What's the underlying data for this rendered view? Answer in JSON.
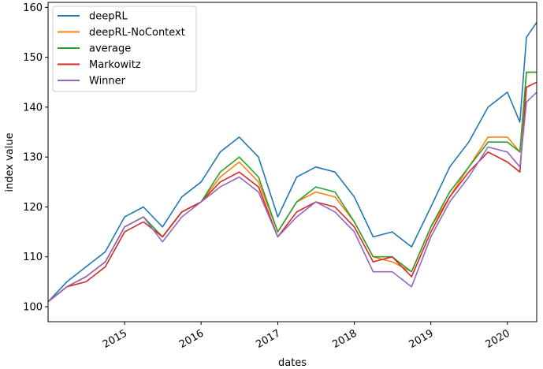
{
  "chart_data": {
    "type": "line",
    "xlabel": "dates",
    "ylabel": "index value",
    "xlim": [
      "2014-01-01",
      "2020-05-20"
    ],
    "ylim": [
      97,
      161
    ],
    "yticks": [
      100,
      110,
      120,
      130,
      140,
      150,
      160
    ],
    "xticks": [
      {
        "date": "2015-01-01",
        "label": "2015"
      },
      {
        "date": "2016-01-01",
        "label": "2016"
      },
      {
        "date": "2017-01-01",
        "label": "2017"
      },
      {
        "date": "2018-01-01",
        "label": "2018"
      },
      {
        "date": "2019-01-01",
        "label": "2019"
      },
      {
        "date": "2020-01-01",
        "label": "2020"
      }
    ],
    "grid": false,
    "legend_position": "top-left",
    "x": [
      "2014-01-01",
      "2014-04-01",
      "2014-07-01",
      "2014-10-01",
      "2015-01-01",
      "2015-04-01",
      "2015-07-01",
      "2015-10-01",
      "2016-01-01",
      "2016-04-01",
      "2016-07-01",
      "2016-10-01",
      "2017-01-01",
      "2017-04-01",
      "2017-07-01",
      "2017-10-01",
      "2018-01-01",
      "2018-04-01",
      "2018-07-01",
      "2018-10-01",
      "2019-01-01",
      "2019-04-01",
      "2019-07-01",
      "2019-10-01",
      "2020-01-01",
      "2020-03-01",
      "2020-04-01",
      "2020-05-20"
    ],
    "series": [
      {
        "name": "deepRL",
        "color": "#1f77b4",
        "values": [
          101,
          105,
          108,
          111,
          118,
          120,
          116,
          122,
          125,
          131,
          134,
          130,
          118,
          126,
          128,
          127,
          122,
          114,
          115,
          112,
          120,
          128,
          133,
          140,
          143,
          137,
          154,
          157
        ]
      },
      {
        "name": "deepRL-NoContext",
        "color": "#ff7f0e",
        "values": [
          101,
          104,
          106,
          109,
          116,
          118,
          114,
          119,
          121,
          126,
          129,
          125,
          115,
          121,
          123,
          122,
          117,
          110,
          109,
          107,
          116,
          122,
          128,
          134,
          134,
          131,
          147,
          147
        ]
      },
      {
        "name": "average",
        "color": "#2ca02c",
        "values": [
          101,
          104,
          106,
          109,
          116,
          118,
          114,
          119,
          121,
          127,
          130,
          126,
          115,
          121,
          124,
          123,
          117,
          110,
          110,
          107,
          116,
          123,
          128,
          133,
          133,
          131,
          147,
          147
        ]
      },
      {
        "name": "Markowitz",
        "color": "#d62728",
        "values": [
          101,
          104,
          105,
          108,
          115,
          117,
          114,
          119,
          121,
          125,
          127,
          124,
          114,
          119,
          121,
          120,
          116,
          109,
          110,
          106,
          115,
          122,
          127,
          131,
          129,
          127,
          144,
          145
        ]
      },
      {
        "name": "Winner",
        "color": "#9467bd",
        "values": [
          101,
          104,
          106,
          109,
          116,
          118,
          113,
          118,
          121,
          124,
          126,
          123,
          114,
          118,
          121,
          119,
          115,
          107,
          107,
          104,
          114,
          121,
          126,
          132,
          131,
          128,
          141,
          143
        ]
      }
    ]
  }
}
